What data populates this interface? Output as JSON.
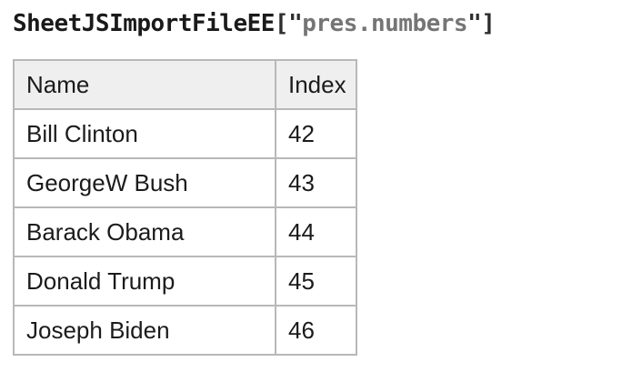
{
  "page": {
    "background_color": "#ffffff",
    "text_color": "#1b1b1b",
    "border_color": "#b8b8b8",
    "header_bg_color": "#efefef",
    "filename_color": "#757575"
  },
  "title": {
    "function": "SheetJSImportFileEE",
    "open": "[\"",
    "filename": "pres.numbers",
    "close": "\"]"
  },
  "table": {
    "columns": [
      "Name",
      "Index"
    ],
    "rows": [
      {
        "name": "Bill Clinton",
        "index": "42"
      },
      {
        "name": "GeorgeW Bush",
        "index": "43"
      },
      {
        "name": "Barack Obama",
        "index": "44"
      },
      {
        "name": "Donald Trump",
        "index": "45"
      },
      {
        "name": "Joseph Biden",
        "index": "46"
      }
    ]
  }
}
